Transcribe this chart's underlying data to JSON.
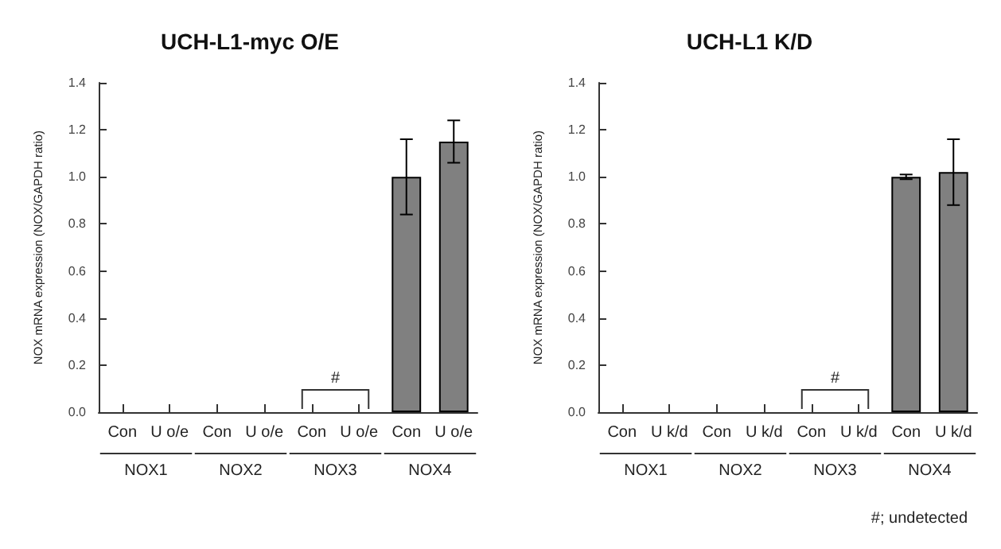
{
  "chart_data": [
    {
      "type": "bar",
      "title": "UCH-L1-myc O/E",
      "ylabel": "NOX mRNA expression (NOX/GAPDH ratio)",
      "categories": [
        "Con",
        "U o/e",
        "Con",
        "U o/e",
        "Con",
        "U o/e",
        "Con",
        "U o/e"
      ],
      "values": [
        null,
        null,
        null,
        null,
        null,
        null,
        1.0,
        1.15
      ],
      "errors": [
        null,
        null,
        null,
        null,
        null,
        null,
        0.16,
        0.09
      ],
      "color": "#808080",
      "ylim": [
        0,
        1.4
      ],
      "yticks": [
        {
          "value": 0,
          "label": "0.0"
        },
        {
          "value": 0.2,
          "label": "0.2"
        },
        {
          "value": 0.4,
          "label": "0.4"
        },
        {
          "value": 0.6,
          "label": "0.6"
        },
        {
          "value": 0.8,
          "label": "0.8"
        },
        {
          "value": 1,
          "label": "1.0"
        },
        {
          "value": 1.2,
          "label": "1.2"
        },
        {
          "value": 1.4,
          "label": "1.4"
        }
      ],
      "grid": false,
      "annotations": [
        "NOX1",
        "NOX2",
        "NOX3",
        "NOX4",
        "#"
      ]
    },
    {
      "type": "bar",
      "title": "UCH-L1 K/D",
      "ylabel": "NOX mRNA expression (NOX/GAPDH ratio)",
      "categories": [
        "Con",
        "U k/d",
        "Con",
        "U k/d",
        "Con",
        "U k/d",
        "Con",
        "U k/d"
      ],
      "values": [
        null,
        null,
        null,
        null,
        null,
        null,
        1.0,
        1.02
      ],
      "errors": [
        null,
        null,
        null,
        null,
        null,
        null,
        0.01,
        [
          0.88,
          1.16
        ]
      ],
      "color": "#808080",
      "ylim": [
        0,
        1.4
      ],
      "yticks": [
        {
          "value": 0,
          "label": "0.0"
        },
        {
          "value": 0.2,
          "label": "0.2"
        },
        {
          "value": 0.4,
          "label": "0.4"
        },
        {
          "value": 0.6,
          "label": "0.6"
        },
        {
          "value": 0.8,
          "label": "0.8"
        },
        {
          "value": 1,
          "label": "1.0"
        },
        {
          "value": 1.2,
          "label": "1.2"
        },
        {
          "value": 1.4,
          "label": "1.4"
        }
      ],
      "grid": false,
      "annotations": [
        "NOX1",
        "NOX2",
        "NOX3",
        "NOX4",
        "#",
        "#; undetected"
      ]
    }
  ]
}
